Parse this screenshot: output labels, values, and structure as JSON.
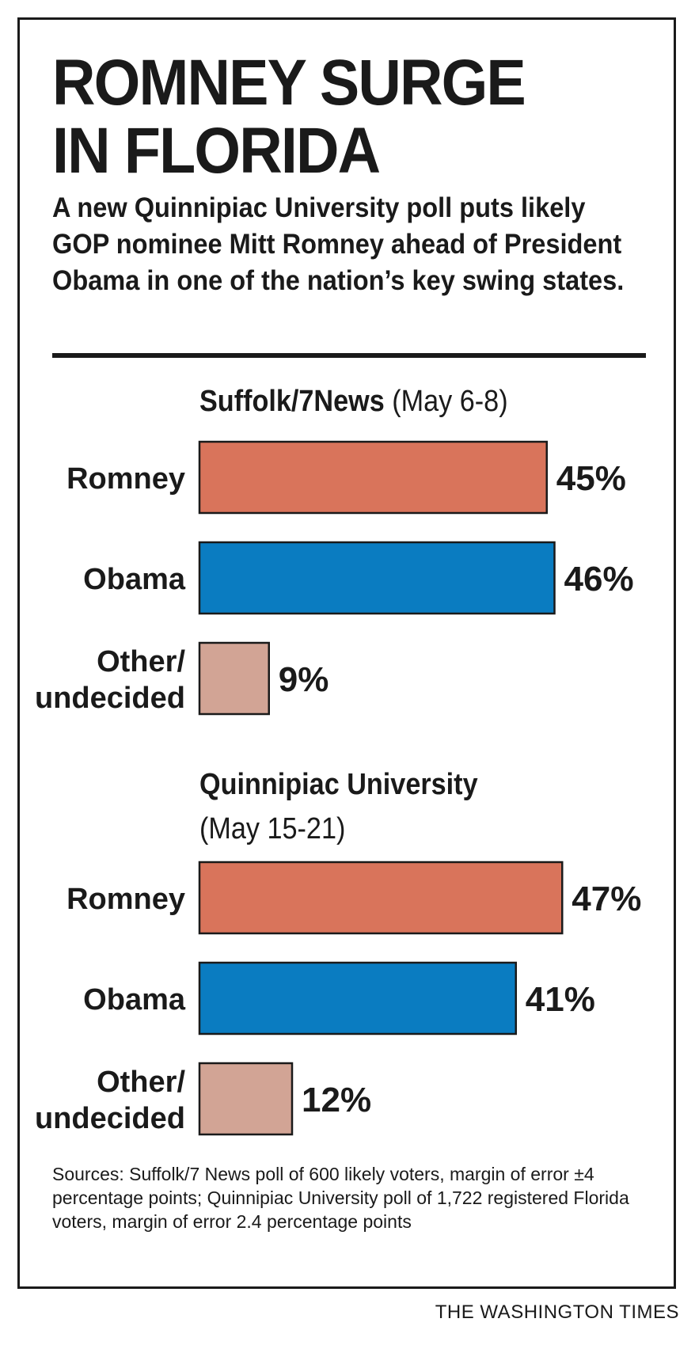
{
  "headline": [
    "ROMNEY SURGE",
    "IN FLORIDA"
  ],
  "subtitle": "A new Quinnipiac University poll puts likely GOP nominee Mitt Romney ahead of President Obama in one of the nation’s key swing states.",
  "sources": "Sources: Suffolk/7 News poll of 600 likely voters, margin of error ±4 percentage points; Quinnipiac University poll of 1,722 registered Florida voters, margin of error 2.4 percentage points",
  "credit": "THE WASHINGTON TIMES",
  "colors": {
    "romney": "#d9745b",
    "obama": "#0a7cc1",
    "other": "#d2a495",
    "ink": "#1a1a1a"
  },
  "chart_data": [
    {
      "type": "bar",
      "orientation": "horizontal",
      "title": "Suffolk/7News",
      "date": "(May 6-8)",
      "categories": [
        [
          "Romney"
        ],
        [
          "Obama"
        ],
        [
          "Other/",
          "undecided"
        ]
      ],
      "values": [
        45,
        46,
        9
      ],
      "value_labels": [
        "45%",
        "46%",
        "9%"
      ],
      "unit": "%"
    },
    {
      "type": "bar",
      "orientation": "horizontal",
      "title": "Quinnipiac University",
      "date": "(May 15-21)",
      "categories": [
        [
          "Romney"
        ],
        [
          "Obama"
        ],
        [
          "Other/",
          "undecided"
        ]
      ],
      "values": [
        47,
        41,
        12
      ],
      "value_labels": [
        "47%",
        "41%",
        "12%"
      ],
      "unit": "%"
    }
  ]
}
